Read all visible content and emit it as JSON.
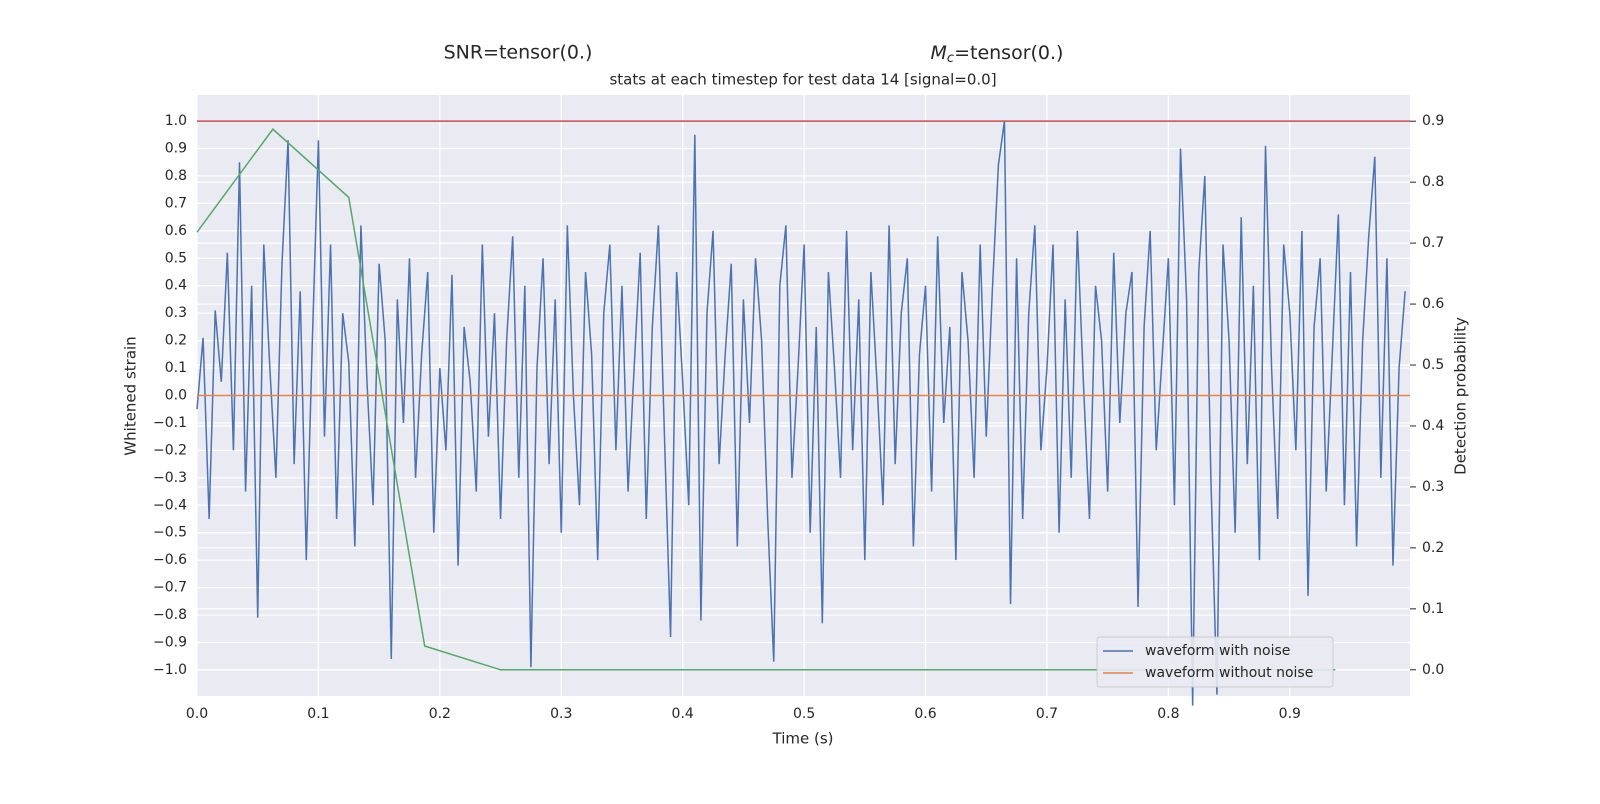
{
  "chart_data": {
    "type": "line",
    "titles": [
      "SNR=tensor(0.)"
    ],
    "mc_title": {
      "symbol": "M",
      "subscript": "c",
      "text": "=tensor(0.)"
    },
    "subtitle": "stats at each timestep for test data 14 [signal=0.0]",
    "xlabel": "Time (s)",
    "ylabel": "Whitened strain",
    "y2label": "Detection probability",
    "xlim": [
      0,
      0.999
    ],
    "ylim": [
      -1.095,
      1.095
    ],
    "y2lim": [
      -0.043,
      0.943
    ],
    "xticks": [
      {
        "value": 0,
        "label": "0.0"
      },
      0.1,
      0.2,
      0.3,
      0.4,
      0.5,
      0.6,
      0.7,
      0.8,
      0.9
    ],
    "yticks": [
      {
        "value": -1,
        "label": "−1.0"
      },
      {
        "value": -0.9,
        "label": "−0.9"
      },
      {
        "value": -0.8,
        "label": "−0.8"
      },
      {
        "value": -0.7,
        "label": "−0.7"
      },
      {
        "value": -0.6,
        "label": "−0.6"
      },
      {
        "value": -0.5,
        "label": "−0.5"
      },
      {
        "value": -0.4,
        "label": "−0.4"
      },
      {
        "value": -0.3,
        "label": "−0.3"
      },
      {
        "value": -0.2,
        "label": "−0.2"
      },
      {
        "value": -0.1,
        "label": "−0.1"
      },
      {
        "value": 0,
        "label": "0.0"
      },
      0.1,
      0.2,
      0.3,
      0.4,
      0.5,
      0.6,
      0.7,
      0.8,
      0.9,
      {
        "value": 1,
        "label": "1.0"
      }
    ],
    "y2ticks": [
      {
        "value": 0,
        "label": "0.0"
      },
      0.1,
      0.2,
      0.3,
      0.4,
      0.5,
      0.6,
      0.7,
      0.8,
      0.9
    ],
    "grid": true,
    "legend": "lower right",
    "hlines": [
      {
        "value": 1.0,
        "color": "#c44e52"
      }
    ],
    "series": [
      {
        "name": "waveform with noise",
        "color": "#4c72b0",
        "x": [
          0,
          0.005,
          0.01,
          0.015,
          0.02,
          0.025,
          0.03,
          0.035,
          0.04,
          0.045,
          0.05,
          0.055,
          0.06,
          0.065,
          0.07,
          0.075,
          0.08,
          0.085,
          0.09,
          0.095,
          0.1,
          0.105,
          0.11,
          0.115,
          0.12,
          0.125,
          0.13,
          0.135,
          0.14,
          0.145,
          0.15,
          0.155,
          0.16,
          0.165,
          0.17,
          0.175,
          0.18,
          0.185,
          0.19,
          0.195,
          0.2,
          0.205,
          0.21,
          0.215,
          0.22,
          0.225,
          0.23,
          0.235,
          0.24,
          0.245,
          0.25,
          0.255,
          0.26,
          0.265,
          0.27,
          0.275,
          0.28,
          0.285,
          0.29,
          0.295,
          0.3,
          0.305,
          0.31,
          0.315,
          0.32,
          0.325,
          0.33,
          0.335,
          0.34,
          0.345,
          0.35,
          0.355,
          0.36,
          0.365,
          0.37,
          0.375,
          0.38,
          0.385,
          0.39,
          0.395,
          0.4,
          0.405,
          0.41,
          0.415,
          0.42,
          0.425,
          0.43,
          0.435,
          0.44,
          0.445,
          0.45,
          0.455,
          0.46,
          0.465,
          0.47,
          0.475,
          0.48,
          0.485,
          0.49,
          0.495,
          0.5,
          0.505,
          0.51,
          0.515,
          0.52,
          0.525,
          0.53,
          0.535,
          0.54,
          0.545,
          0.55,
          0.555,
          0.56,
          0.565,
          0.57,
          0.575,
          0.58,
          0.585,
          0.59,
          0.595,
          0.6,
          0.605,
          0.61,
          0.615,
          0.62,
          0.625,
          0.63,
          0.635,
          0.64,
          0.645,
          0.65,
          0.655,
          0.66,
          0.665,
          0.67,
          0.675,
          0.68,
          0.685,
          0.69,
          0.695,
          0.7,
          0.705,
          0.71,
          0.715,
          0.72,
          0.725,
          0.73,
          0.735,
          0.74,
          0.745,
          0.75,
          0.755,
          0.76,
          0.765,
          0.77,
          0.775,
          0.78,
          0.785,
          0.79,
          0.795,
          0.8,
          0.805,
          0.81,
          0.815,
          0.82,
          0.825,
          0.83,
          0.835,
          0.84,
          0.845,
          0.85,
          0.855,
          0.86,
          0.865,
          0.87,
          0.875,
          0.88,
          0.885,
          0.89,
          0.895,
          0.9,
          0.905,
          0.91,
          0.915,
          0.92,
          0.925,
          0.93,
          0.935,
          0.94,
          0.945,
          0.95,
          0.955,
          0.96,
          0.965,
          0.97,
          0.975,
          0.98,
          0.985,
          0.99,
          0.995
        ],
        "values": [
          -0.05,
          0.21,
          -0.45,
          0.31,
          0.05,
          0.52,
          -0.2,
          0.85,
          -0.35,
          0.4,
          -0.81,
          0.55,
          0.1,
          -0.3,
          0.48,
          0.93,
          -0.25,
          0.38,
          -0.6,
          0.2,
          0.93,
          -0.15,
          0.55,
          -0.45,
          0.3,
          0.12,
          -0.55,
          0.62,
          0.05,
          -0.4,
          0.48,
          0.2,
          -0.96,
          0.35,
          -0.1,
          0.5,
          -0.3,
          0.15,
          0.45,
          -0.5,
          0.1,
          -0.2,
          0.44,
          -0.62,
          0.25,
          0.05,
          -0.35,
          0.55,
          -0.15,
          0.3,
          -0.45,
          0.2,
          0.58,
          -0.3,
          0.4,
          -0.99,
          0.1,
          0.5,
          -0.25,
          0.35,
          -0.5,
          0.62,
          0.0,
          -0.4,
          0.45,
          0.15,
          -0.6,
          0.3,
          0.55,
          -0.2,
          0.4,
          -0.35,
          0.1,
          0.52,
          -0.45,
          0.25,
          0.62,
          -0.15,
          -0.88,
          0.45,
          0.05,
          -0.4,
          0.95,
          -0.82,
          0.3,
          0.6,
          -0.25,
          0.15,
          0.48,
          -0.55,
          0.35,
          -0.1,
          0.5,
          0.2,
          -0.45,
          -0.97,
          0.4,
          0.62,
          -0.3,
          0.1,
          0.55,
          -0.5,
          0.25,
          -0.83,
          0.45,
          0.1,
          -0.3,
          0.6,
          -0.2,
          0.35,
          -0.6,
          0.45,
          0.05,
          -0.4,
          0.62,
          -0.25,
          0.3,
          0.5,
          -0.55,
          0.15,
          0.4,
          -0.35,
          0.58,
          -0.1,
          0.25,
          -0.6,
          0.45,
          0.2,
          -0.3,
          0.55,
          -0.15,
          0.38,
          0.84,
          1.0,
          -0.76,
          0.5,
          -0.45,
          0.3,
          0.62,
          -0.2,
          0.1,
          0.55,
          -0.5,
          0.35,
          -0.3,
          0.6,
          0.05,
          -0.45,
          0.4,
          0.2,
          -0.35,
          0.52,
          -0.1,
          0.3,
          0.45,
          -0.77,
          0.25,
          0.6,
          -0.2,
          0.15,
          0.5,
          -0.4,
          0.9,
          0.35,
          -1.13,
          0.45,
          0.8,
          -0.3,
          -1.09,
          0.55,
          0.2,
          -0.5,
          0.65,
          -0.25,
          0.4,
          -0.6,
          0.91,
          0.1,
          -0.45,
          0.55,
          0.3,
          -0.2,
          0.6,
          -0.73,
          0.25,
          0.5,
          -0.35,
          0.15,
          0.66,
          -0.4,
          0.45,
          -0.55,
          0.2,
          0.58,
          0.87,
          -0.3,
          0.5,
          -0.62,
          0.1,
          0.38
        ]
      },
      {
        "name": "waveform without noise",
        "color": "#dd8452",
        "x": [
          0,
          0.999
        ],
        "values": [
          0,
          0
        ]
      },
      {
        "color": "#55a868",
        "axis": "y2",
        "x": [
          0,
          0.0625,
          0.125,
          0.1875,
          0.25,
          0.3125,
          0.375,
          0.4375,
          0.5,
          0.5625,
          0.625,
          0.6875,
          0.75,
          0.8125,
          0.875,
          0.9375
        ],
        "values": [
          0.718,
          0.887,
          0.775,
          0.039,
          0,
          0,
          0,
          0,
          0,
          0,
          0,
          0,
          0,
          0,
          0,
          0
        ]
      }
    ]
  }
}
